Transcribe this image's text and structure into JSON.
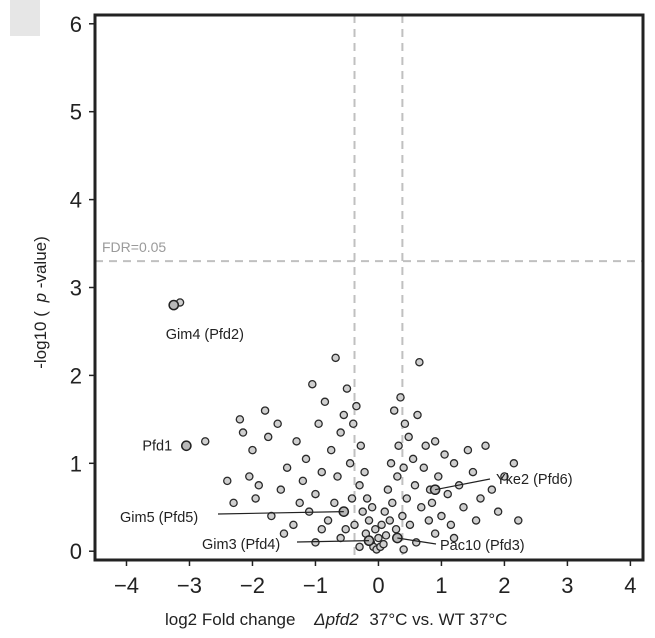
{
  "chart_data": {
    "type": "scatter",
    "title": "",
    "xlabel_parts": [
      "log2 Fold change",
      "Δpfd2",
      "37°C vs. WT 37°C"
    ],
    "ylabel_parts": [
      "-log10 (",
      "p",
      "-value)"
    ],
    "xlim": [
      -4.5,
      4.2
    ],
    "ylim": [
      -0.1,
      6.1
    ],
    "x_ticks": [
      -4,
      -3,
      -2,
      -1,
      0,
      1,
      2,
      3,
      4
    ],
    "x_tick_labels": [
      "−4",
      "−3",
      "−2",
      "−1",
      "0",
      "1",
      "2",
      "3",
      "4"
    ],
    "y_ticks": [
      0,
      1,
      2,
      3,
      4,
      5,
      6
    ],
    "y_tick_labels": [
      "0",
      "1",
      "2",
      "3",
      "4",
      "5",
      "6"
    ],
    "grid": false,
    "fdr_threshold": {
      "y": 3.3,
      "label": "FDR=0.05"
    },
    "fold_change_cutoffs": [
      -0.38,
      0.38
    ],
    "highlighted": [
      {
        "label": "Gim4 (Pfd2)",
        "x": -3.25,
        "y": 2.8
      },
      {
        "label": "Pfd1",
        "x": -3.05,
        "y": 1.2
      },
      {
        "label": "Gim5 (Pfd5)",
        "x": -0.55,
        "y": 0.45
      },
      {
        "label": "Gim3 (Pfd4)",
        "x": -0.15,
        "y": 0.12
      },
      {
        "label": "Yke2 (Pfd6)",
        "x": 0.9,
        "y": 0.7
      },
      {
        "label": "Pac10 (Pfd3)",
        "x": 0.3,
        "y": 0.15
      }
    ],
    "points": [
      [
        -3.15,
        2.83
      ],
      [
        -2.75,
        1.25
      ],
      [
        -2.4,
        0.8
      ],
      [
        -2.3,
        0.55
      ],
      [
        -2.2,
        1.5
      ],
      [
        -2.15,
        1.35
      ],
      [
        -2.05,
        0.85
      ],
      [
        -2.0,
        1.15
      ],
      [
        -1.95,
        0.6
      ],
      [
        -1.9,
        0.75
      ],
      [
        -1.8,
        1.6
      ],
      [
        -1.75,
        1.3
      ],
      [
        -1.7,
        0.4
      ],
      [
        -1.6,
        1.45
      ],
      [
        -1.55,
        0.7
      ],
      [
        -1.45,
        0.95
      ],
      [
        -1.35,
        0.3
      ],
      [
        -1.3,
        1.25
      ],
      [
        -1.25,
        0.55
      ],
      [
        -1.2,
        0.8
      ],
      [
        -1.15,
        1.05
      ],
      [
        -1.1,
        0.45
      ],
      [
        -1.05,
        1.9
      ],
      [
        -1.0,
        0.65
      ],
      [
        -0.95,
        1.45
      ],
      [
        -0.9,
        0.9
      ],
      [
        -0.85,
        1.7
      ],
      [
        -0.8,
        0.35
      ],
      [
        -0.75,
        1.15
      ],
      [
        -0.7,
        0.55
      ],
      [
        -0.68,
        2.2
      ],
      [
        -0.65,
        0.85
      ],
      [
        -0.6,
        1.35
      ],
      [
        -0.55,
        1.55
      ],
      [
        -0.52,
        0.25
      ],
      [
        -0.5,
        1.85
      ],
      [
        -0.45,
        1.0
      ],
      [
        -0.42,
        0.6
      ],
      [
        -0.4,
        1.45
      ],
      [
        -0.38,
        0.3
      ],
      [
        -0.35,
        1.65
      ],
      [
        -0.3,
        0.75
      ],
      [
        -0.28,
        1.2
      ],
      [
        -0.25,
        0.45
      ],
      [
        -0.22,
        0.9
      ],
      [
        -0.2,
        0.2
      ],
      [
        -0.18,
        0.6
      ],
      [
        -0.15,
        0.35
      ],
      [
        -0.12,
        0.1
      ],
      [
        -0.1,
        0.5
      ],
      [
        -0.08,
        0.05
      ],
      [
        -0.05,
        0.25
      ],
      [
        -0.03,
        0.02
      ],
      [
        0.0,
        0.15
      ],
      [
        0.03,
        0.05
      ],
      [
        0.05,
        0.3
      ],
      [
        0.08,
        0.08
      ],
      [
        0.1,
        0.45
      ],
      [
        0.12,
        0.18
      ],
      [
        0.15,
        0.7
      ],
      [
        0.18,
        0.35
      ],
      [
        0.2,
        1.0
      ],
      [
        0.22,
        0.55
      ],
      [
        0.25,
        1.6
      ],
      [
        0.28,
        0.25
      ],
      [
        0.3,
        0.85
      ],
      [
        0.32,
        1.2
      ],
      [
        0.35,
        1.75
      ],
      [
        0.38,
        0.4
      ],
      [
        0.4,
        0.95
      ],
      [
        0.42,
        1.45
      ],
      [
        0.45,
        0.6
      ],
      [
        0.48,
        1.3
      ],
      [
        0.5,
        0.3
      ],
      [
        0.55,
        1.05
      ],
      [
        0.58,
        0.75
      ],
      [
        0.62,
        1.55
      ],
      [
        0.65,
        2.15
      ],
      [
        0.68,
        0.5
      ],
      [
        0.72,
        0.95
      ],
      [
        0.75,
        1.2
      ],
      [
        0.8,
        0.35
      ],
      [
        0.82,
        0.7
      ],
      [
        0.85,
        0.55
      ],
      [
        0.9,
        1.25
      ],
      [
        0.95,
        0.85
      ],
      [
        1.0,
        0.4
      ],
      [
        1.05,
        1.1
      ],
      [
        1.1,
        0.65
      ],
      [
        1.15,
        0.3
      ],
      [
        1.2,
        1.0
      ],
      [
        1.28,
        0.75
      ],
      [
        1.35,
        0.5
      ],
      [
        1.42,
        1.15
      ],
      [
        1.5,
        0.9
      ],
      [
        1.55,
        0.35
      ],
      [
        1.62,
        0.6
      ],
      [
        1.7,
        1.2
      ],
      [
        1.8,
        0.7
      ],
      [
        1.9,
        0.45
      ],
      [
        2.0,
        0.85
      ],
      [
        2.15,
        1.0
      ],
      [
        2.22,
        0.35
      ],
      [
        -0.9,
        0.25
      ],
      [
        -0.6,
        0.15
      ],
      [
        -0.3,
        0.05
      ],
      [
        0.6,
        0.1
      ],
      [
        0.9,
        0.2
      ],
      [
        1.2,
        0.15
      ],
      [
        -1.5,
        0.2
      ],
      [
        -1.0,
        0.1
      ],
      [
        0.4,
        0.02
      ]
    ]
  }
}
